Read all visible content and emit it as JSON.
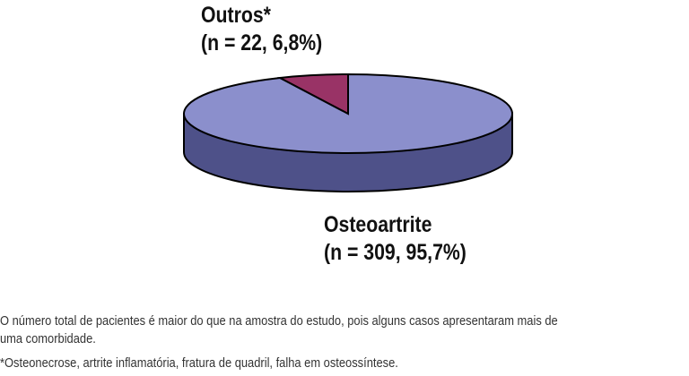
{
  "chart_data": {
    "type": "pie",
    "style": "3d",
    "slices": [
      {
        "label": "Osteoartrite",
        "detail": "(n = 309, 95,7%)",
        "n": 309,
        "percent": 95.7,
        "color": "#8b8fcc",
        "side_color": "#4e5189"
      },
      {
        "label": "Outros*",
        "detail": "(n = 22, 6,8%)",
        "n": 22,
        "percent": 6.8,
        "color": "#993366",
        "side_color": "#6b2247"
      }
    ]
  },
  "notes": [
    "O número total de pacientes é maior do que na amostra do estudo, pois alguns casos apresentaram mais de",
    "uma comorbidade.",
    "*Osteonecrose, artrite inflamatória, fratura de quadril, falha em osteossíntese."
  ]
}
